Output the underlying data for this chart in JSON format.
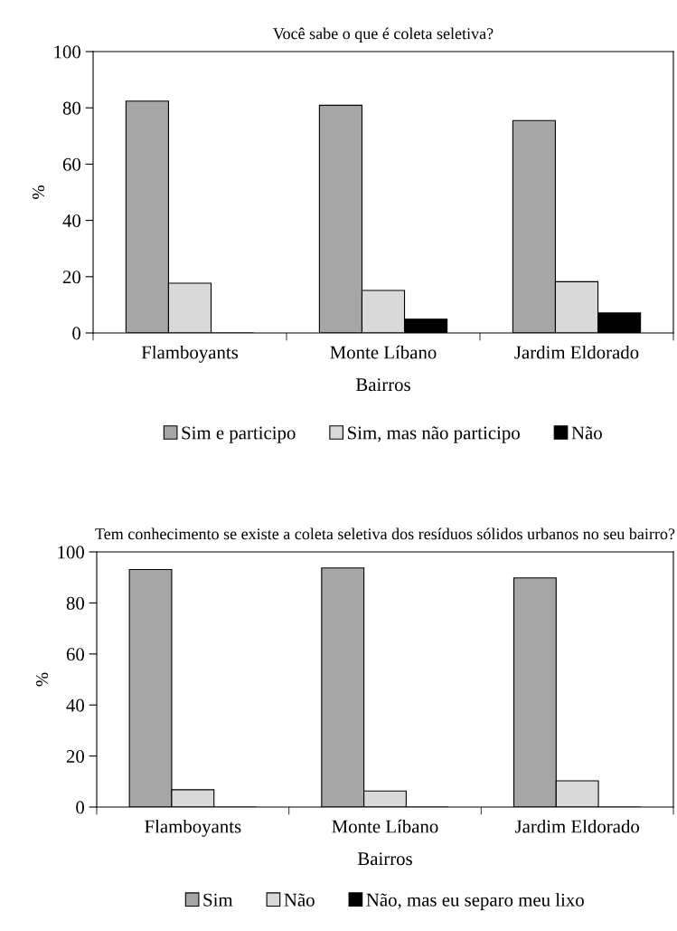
{
  "chart_data": [
    {
      "type": "bar",
      "title": "Você sabe o que é coleta seletiva?",
      "xlabel": "Bairros",
      "ylabel": "%",
      "categories": [
        "Flamboyants",
        "Monte Líbano",
        "Jardim Eldorado"
      ],
      "ylim": [
        0,
        100
      ],
      "yticks": [
        0,
        20,
        40,
        60,
        80,
        100
      ],
      "grid": false,
      "legend": "bottom",
      "series": [
        {
          "name": "Sim e participo",
          "color": "#a6a6a6",
          "values": [
            82.4,
            80.9,
            75.5
          ]
        },
        {
          "name": "Sim, mas não participo",
          "color": "#d9d9d9",
          "values": [
            17.7,
            15.1,
            18.2
          ]
        },
        {
          "name": "Não",
          "color": "#000000",
          "values": [
            0,
            4.9,
            7.1
          ]
        }
      ]
    },
    {
      "type": "bar",
      "title": "Tem conhecimento se existe a coleta seletiva dos resíduos sólidos urbanos no seu bairro?",
      "xlabel": "Bairros",
      "ylabel": "%",
      "categories": [
        "Flamboyants",
        "Monte Líbano",
        "Jardim Eldorado"
      ],
      "ylim": [
        0,
        100
      ],
      "yticks": [
        0,
        20,
        40,
        60,
        80,
        100
      ],
      "grid": false,
      "legend": "bottom",
      "series": [
        {
          "name": "Sim",
          "color": "#a6a6a6",
          "values": [
            93.1,
            93.7,
            89.8
          ]
        },
        {
          "name": "Não",
          "color": "#d9d9d9",
          "values": [
            6.8,
            6.3,
            10.3
          ]
        },
        {
          "name": "Não, mas eu separo meu lixo",
          "color": "#000000",
          "values": [
            0,
            0,
            0
          ]
        }
      ]
    }
  ]
}
